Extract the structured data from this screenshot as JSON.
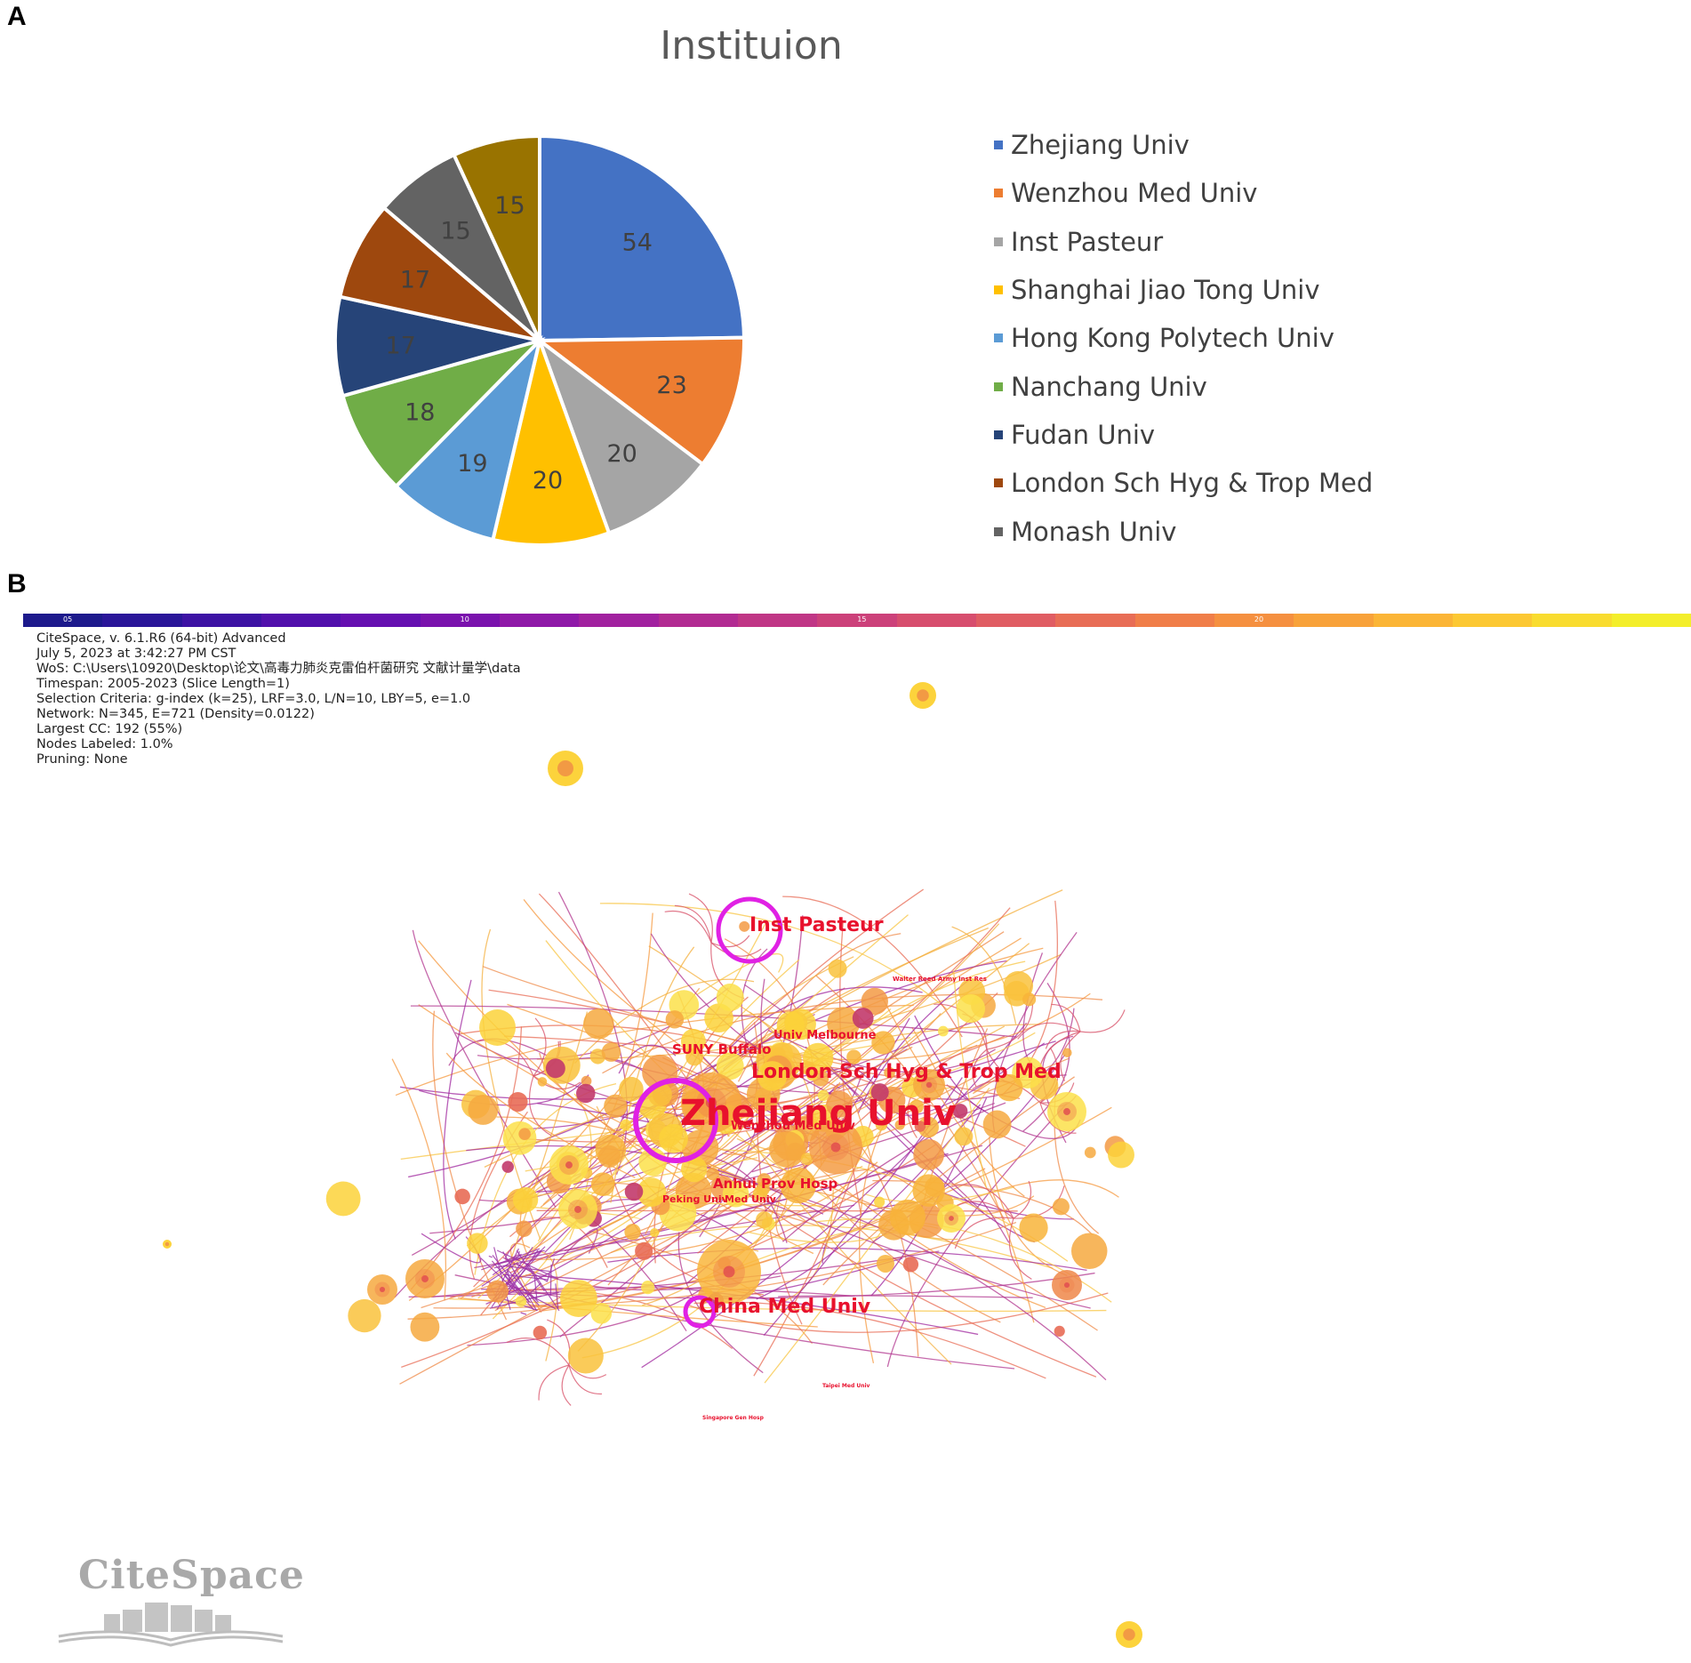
{
  "panels": {
    "a": "A",
    "b": "B"
  },
  "chart_data": [
    {
      "type": "pie",
      "title": "Instituion",
      "series": [
        {
          "name": "Zhejiang Univ",
          "value": 54,
          "color": "#4472C4"
        },
        {
          "name": "Wenzhou Med Univ",
          "value": 23,
          "color": "#ED7D31"
        },
        {
          "name": "Inst Pasteur",
          "value": 20,
          "color": "#A5A5A5"
        },
        {
          "name": "Shanghai Jiao Tong Univ",
          "value": 20,
          "color": "#FFC000"
        },
        {
          "name": "Hong Kong Polytech Univ",
          "value": 19,
          "color": "#5B9BD5"
        },
        {
          "name": "Nanchang Univ",
          "value": 18,
          "color": "#70AD47"
        },
        {
          "name": "Fudan Univ",
          "value": 17,
          "color": "#264478"
        },
        {
          "name": "London Sch Hyg & Trop Med",
          "value": 17,
          "color": "#9E480E"
        },
        {
          "name": "Monash Univ",
          "value": 15,
          "color": "#636363"
        },
        {
          "name": "",
          "value": 15,
          "color": "#997300"
        }
      ],
      "legend_position": "right",
      "start_angle_deg": 0,
      "direction": "clockwise"
    }
  ],
  "network": {
    "timeline_ticks": [
      "05",
      "10",
      "15",
      "20"
    ],
    "timeline_colors": [
      "#1d1a8c",
      "#2a1699",
      "#3d12a4",
      "#5110ac",
      "#650fb0",
      "#7a12ad",
      "#8f19a8",
      "#a1219f",
      "#b22b92",
      "#c03686",
      "#cc417a",
      "#d74e6e",
      "#e05d63",
      "#e86d56",
      "#f07e49",
      "#f59040",
      "#f8a23a",
      "#fbb536",
      "#fcc833",
      "#f9dc2f",
      "#f3ee2b"
    ],
    "info_lines": [
      "CiteSpace, v. 6.1.R6 (64-bit) Advanced",
      "July 5, 2023 at 3:42:27 PM CST",
      "WoS: C:\\Users\\10920\\Desktop\\论文\\高毒力肺炎克雷伯杆菌研究 文献计量学\\data",
      "Timespan: 2005-2023 (Slice Length=1)",
      "Selection Criteria: g-index (k=25), LRF=3.0, L/N=10, LBY=5, e=1.0",
      "Network: N=345, E=721 (Density=0.0122)",
      "Largest CC: 192 (55%)",
      "Nodes Labeled: 1.0%",
      "Pruning: None"
    ],
    "labels": [
      {
        "text": "Zhejiang Univ",
        "size": "xl"
      },
      {
        "text": "London Sch Hyg & Trop Med",
        "size": "l"
      },
      {
        "text": "Inst Pasteur",
        "size": "l"
      },
      {
        "text": "China Med Univ",
        "size": "l"
      },
      {
        "text": "SUNY Buffalo",
        "size": "s"
      },
      {
        "text": "Univ Melbourne",
        "size": "s"
      },
      {
        "text": "Anhui Prov Hosp",
        "size": "s"
      },
      {
        "text": "Wenzhou Med Univ",
        "size": "s"
      },
      {
        "text": "Peking Univ",
        "size": "xs"
      },
      {
        "text": "Med Univ",
        "size": "xs"
      },
      {
        "text": "Walter Reed Army Inst Res",
        "size": "xxs"
      },
      {
        "text": "Taipei Med Univ",
        "size": "xxs"
      },
      {
        "text": "Singapore Gen Hosp",
        "size": "xxs"
      }
    ],
    "logo_text": "CiteSpace"
  }
}
